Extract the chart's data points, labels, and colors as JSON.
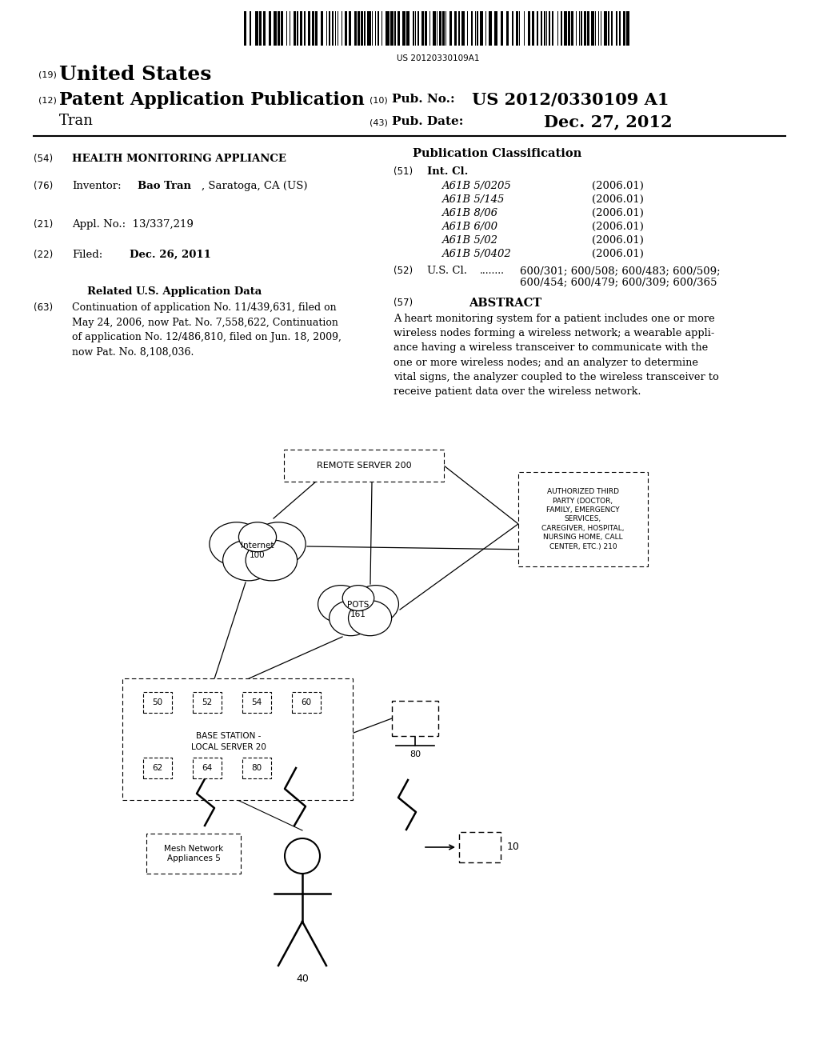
{
  "background_color": "#ffffff",
  "barcode_text": "US 20120330109A1",
  "header": {
    "country": "United States",
    "kind": "Patent Application Publication",
    "inventor_surname": "Tran",
    "pub_no": "US 2012/0330109 A1",
    "pub_date": "Dec. 27, 2012"
  },
  "left_col": {
    "title": "HEALTH MONITORING APPLIANCE",
    "inventor_bold": "Bao Tran",
    "inventor_rest": ", Saratoga, CA (US)",
    "appl_no": "13/337,219",
    "filed": "Dec. 26, 2011",
    "related_title": "Related U.S. Application Data",
    "related_body": "Continuation of application No. 11/439,631, filed on\nMay 24, 2006, now Pat. No. 7,558,622, Continuation\nof application No. 12/486,810, filed on Jun. 18, 2009,\nnow Pat. No. 8,108,036."
  },
  "right_col": {
    "pub_class_title": "Publication Classification",
    "int_cl_classes": [
      [
        "A61B 5/0205",
        "(2006.01)"
      ],
      [
        "A61B 5/145",
        "(2006.01)"
      ],
      [
        "A61B 8/06",
        "(2006.01)"
      ],
      [
        "A61B 6/00",
        "(2006.01)"
      ],
      [
        "A61B 5/02",
        "(2006.01)"
      ],
      [
        "A61B 5/0402",
        "(2006.01)"
      ]
    ],
    "us_cl_line1": "600/301; 600/508; 600/483; 600/509;",
    "us_cl_line2": "600/454; 600/479; 600/309; 600/365",
    "abstract_text": "A heart monitoring system for a patient includes one or more\nwireless nodes forming a wireless network; a wearable appli-\nance having a wireless transceiver to communicate with the\none or more wireless nodes; and an analyzer to determine\nvital signs, the analyzer coupled to the wireless transceiver to\nreceive patient data over the wireless network."
  },
  "diagram": {
    "remote_server_label": "REMOTE SERVER 200",
    "internet_label": "Internet\n100",
    "pots_label": "POTS\n161",
    "authorized_label": "AUTHORIZED THIRD\nPARTY (DOCTOR,\nFAMILY, EMERGENCY\nSERVICES,\nCAREGIVER, HOSPITAL,\nNURSING HOME, CALL\nCENTER, ETC.) 210",
    "base_station_label": "BASE STATION -\nLOCAL SERVER 20",
    "top_boxes": [
      "50",
      "52",
      "54",
      "60"
    ],
    "bot_boxes": [
      "62",
      "64",
      "80"
    ],
    "monitor_label": "80",
    "mesh_label": "Mesh Network\nAppliances 5",
    "person_label": "40",
    "appliance_label": "10"
  }
}
